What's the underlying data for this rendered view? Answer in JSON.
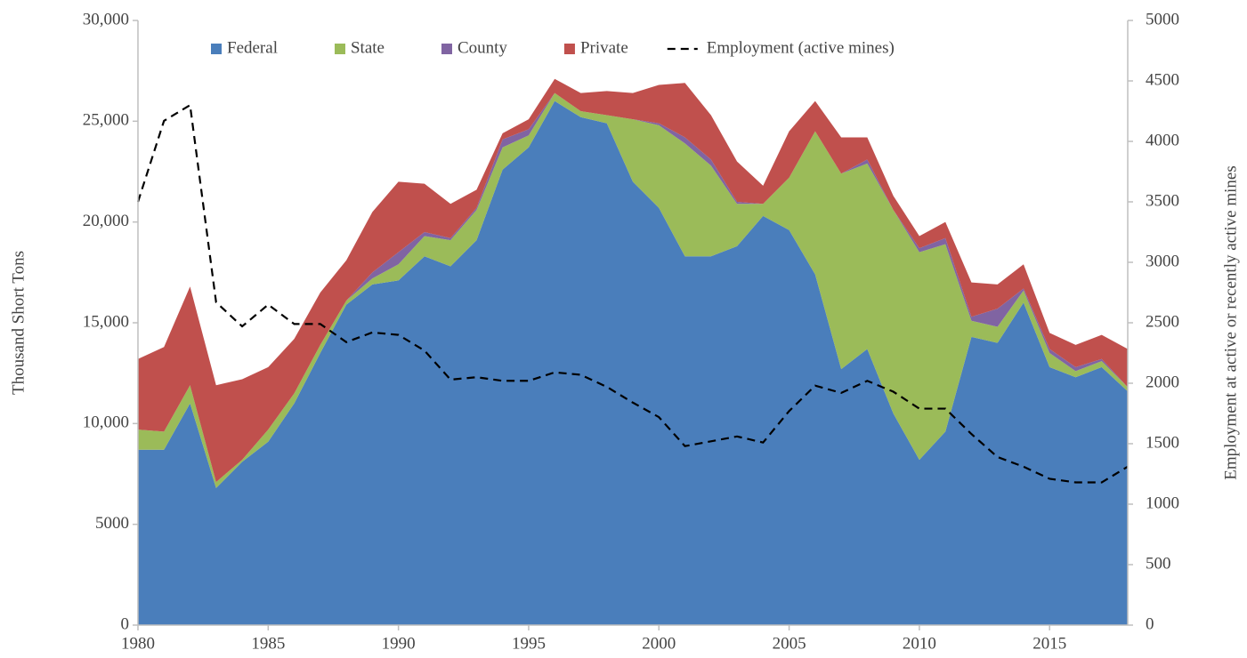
{
  "chart_data": {
    "type": "area",
    "stacked": true,
    "y_label": "Thousand Short Tons",
    "y2_label": "Employment at active or recently active mines",
    "x": [
      1980,
      1981,
      1982,
      1983,
      1984,
      1985,
      1986,
      1987,
      1988,
      1989,
      1990,
      1991,
      1992,
      1993,
      1994,
      1995,
      1996,
      1997,
      1998,
      1999,
      2000,
      2001,
      2002,
      2003,
      2004,
      2005,
      2006,
      2007,
      2008,
      2009,
      2010,
      2011,
      2012,
      2013,
      2014,
      2015,
      2016,
      2017,
      2018
    ],
    "xlim": [
      1980,
      2018
    ],
    "xticks": [
      1980,
      1985,
      1990,
      1995,
      2000,
      2005,
      2010,
      2015
    ],
    "ylim": [
      0,
      30000
    ],
    "yticks": [
      0,
      5000,
      {
        "value": 10000,
        "label": "10,000"
      },
      {
        "value": 15000,
        "label": "15,000"
      },
      {
        "value": 20000,
        "label": "20,000"
      },
      {
        "value": 25000,
        "label": "25,000"
      },
      {
        "value": 30000,
        "label": "30,000"
      }
    ],
    "y2lim": [
      0,
      5000
    ],
    "y2ticks": [
      0,
      500,
      1000,
      1500,
      2000,
      2500,
      3000,
      3500,
      4000,
      4500,
      5000
    ],
    "legend": "top",
    "series": [
      {
        "name": "Federal",
        "color": "#4a7ebb",
        "values": [
          8700,
          8700,
          11000,
          6800,
          8100,
          9100,
          11000,
          13500,
          15900,
          16900,
          17100,
          18300,
          17800,
          19100,
          22600,
          23700,
          26000,
          25200,
          24900,
          22000,
          20700,
          18300,
          18300,
          18800,
          20300,
          19600,
          17400,
          12700,
          13700,
          10500,
          8200,
          9600,
          14300,
          14000,
          16000,
          12800,
          12300,
          12800,
          11600
        ]
      },
      {
        "name": "State",
        "color": "#9bbb59",
        "values": [
          1000,
          900,
          900,
          300,
          100,
          600,
          500,
          400,
          200,
          300,
          800,
          1000,
          1300,
          1500,
          1100,
          600,
          400,
          300,
          400,
          3100,
          4100,
          5600,
          4500,
          2100,
          600,
          2600,
          7100,
          9700,
          9200,
          10100,
          10300,
          9300,
          800,
          800,
          600,
          700,
          300,
          300,
          200
        ]
      },
      {
        "name": "County",
        "color": "#8064a2",
        "values": [
          0,
          0,
          0,
          0,
          0,
          0,
          0,
          0,
          0,
          300,
          600,
          200,
          100,
          100,
          400,
          300,
          0,
          0,
          0,
          0,
          100,
          300,
          300,
          100,
          0,
          0,
          0,
          0,
          200,
          0,
          200,
          300,
          200,
          900,
          100,
          200,
          200,
          100,
          0
        ]
      },
      {
        "name": "Private",
        "color": "#c0504d",
        "values": [
          3500,
          4200,
          4900,
          4800,
          4000,
          3100,
          2700,
          2600,
          2000,
          3000,
          3500,
          2400,
          1700,
          900,
          300,
          500,
          700,
          900,
          1200,
          1300,
          1900,
          2700,
          2200,
          2000,
          900,
          2300,
          1500,
          1800,
          1100,
          700,
          600,
          800,
          1700,
          1200,
          1200,
          800,
          1100,
          1200,
          1900
        ]
      },
      {
        "name": "Employment (active mines)",
        "type": "line",
        "axis": "y2",
        "dashed": true,
        "color": "#000000",
        "values": [
          3500,
          4170,
          4300,
          2670,
          2470,
          2650,
          2490,
          2490,
          2340,
          2420,
          2400,
          2270,
          2030,
          2050,
          2020,
          2020,
          2090,
          2070,
          1970,
          1840,
          1720,
          1480,
          1520,
          1560,
          1510,
          1770,
          1980,
          1920,
          2020,
          1930,
          1790,
          1790,
          1580,
          1390,
          1310,
          1210,
          1180,
          1180,
          1310
        ]
      }
    ]
  }
}
